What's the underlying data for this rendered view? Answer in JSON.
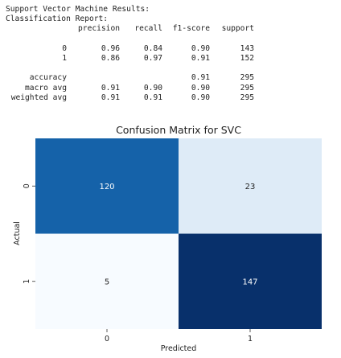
{
  "report": {
    "heading": "Support Vector Machine Results:",
    "subheading": "Classification Report:",
    "columns": [
      "precision",
      "recall",
      "f1-score",
      "support"
    ],
    "rows": [
      {
        "label": "0",
        "precision": "0.96",
        "recall": "0.84",
        "f1": "0.90",
        "support": "143"
      },
      {
        "label": "1",
        "precision": "0.86",
        "recall": "0.97",
        "f1": "0.91",
        "support": "152"
      }
    ],
    "summary": [
      {
        "label": "accuracy",
        "precision": "",
        "recall": "",
        "f1": "0.91",
        "support": "295"
      },
      {
        "label": "macro avg",
        "precision": "0.91",
        "recall": "0.90",
        "f1": "0.90",
        "support": "295"
      },
      {
        "label": "weighted avg",
        "precision": "0.91",
        "recall": "0.91",
        "f1": "0.90",
        "support": "295"
      }
    ]
  },
  "chart_data": {
    "type": "heatmap",
    "title": "Confusion Matrix for SVC",
    "xlabel": "Predicted",
    "ylabel": "Actual",
    "x_categories": [
      "0",
      "1"
    ],
    "y_categories": [
      "0",
      "1"
    ],
    "values": [
      [
        120,
        23
      ],
      [
        5,
        147
      ]
    ],
    "colormap": "Blues",
    "color_range": [
      5,
      147
    ],
    "colorbar": false
  }
}
